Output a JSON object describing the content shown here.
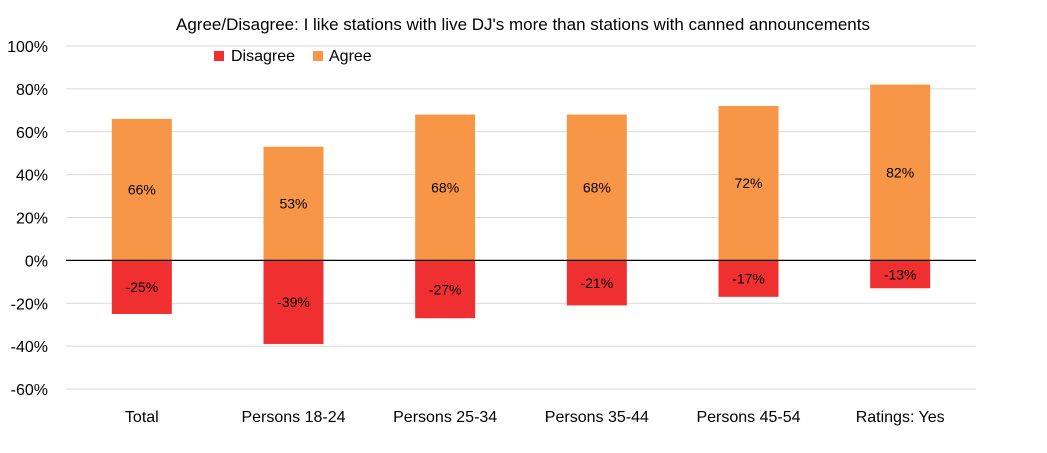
{
  "chart_data": {
    "type": "bar",
    "stacked": true,
    "title": "Agree/Disagree: I like stations with live DJ's more than stations with canned announcements",
    "categories": [
      "Total",
      "Persons 18-24",
      "Persons 25-34",
      "Persons 35-44",
      "Persons 45-54",
      "Ratings: Yes"
    ],
    "series": [
      {
        "name": "Disagree",
        "color": "#f03030",
        "values": [
          -25,
          -39,
          -27,
          -21,
          -17,
          -13
        ],
        "labels": [
          "-25%",
          "-39%",
          "-27%",
          "-21%",
          "-17%",
          "-13%"
        ]
      },
      {
        "name": "Agree",
        "color": "#f79646",
        "values": [
          66,
          53,
          68,
          68,
          72,
          82
        ],
        "labels": [
          "66%",
          "53%",
          "68%",
          "68%",
          "72%",
          "82%"
        ]
      }
    ],
    "ylim": [
      -60,
      100
    ],
    "yticks": [
      100,
      80,
      60,
      40,
      20,
      0,
      -20,
      -40,
      -60
    ],
    "ytick_labels": [
      "100%",
      "80%",
      "60%",
      "40%",
      "20%",
      "0%",
      "-20%",
      "-40%",
      "-60%"
    ],
    "grid": true,
    "legend_position": "top-left"
  }
}
